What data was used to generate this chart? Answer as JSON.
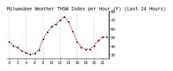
{
  "title": "Milwaukee Weather THSW Index per Hour (F) (Last 24 Hours)",
  "x": [
    0,
    1,
    2,
    3,
    4,
    5,
    6,
    7,
    8,
    9,
    10,
    11,
    12,
    13,
    14,
    15,
    16,
    17,
    18,
    19,
    20,
    21,
    22,
    23
  ],
  "y": [
    45,
    40,
    38,
    34,
    32,
    30,
    31,
    35,
    48,
    56,
    62,
    65,
    70,
    74,
    68,
    57,
    45,
    38,
    36,
    36,
    40,
    46,
    50,
    50
  ],
  "line_color": "#dd0000",
  "marker_color": "#000000",
  "background_color": "#ffffff",
  "grid_color": "#999999",
  "title_color": "#000000",
  "ylim": [
    25,
    80
  ],
  "ytick_values": [
    30,
    40,
    50,
    60,
    70,
    80
  ],
  "ytick_labels": [
    "30",
    "40",
    "50",
    "60",
    "70",
    "80"
  ],
  "xtick_positions": [
    0,
    2,
    4,
    6,
    8,
    10,
    12,
    14,
    16,
    18,
    20,
    22
  ],
  "xtick_labels": [
    "0",
    "2",
    "4",
    "6",
    "8",
    "10",
    "12",
    "14",
    "16",
    "18",
    "20",
    "22"
  ],
  "grid_positions": [
    0,
    4,
    8,
    12,
    16,
    20
  ],
  "ylabel_fontsize": 4,
  "xlabel_fontsize": 3.8,
  "title_fontsize": 4.8,
  "linewidth": 0.7,
  "markersize": 1.2
}
